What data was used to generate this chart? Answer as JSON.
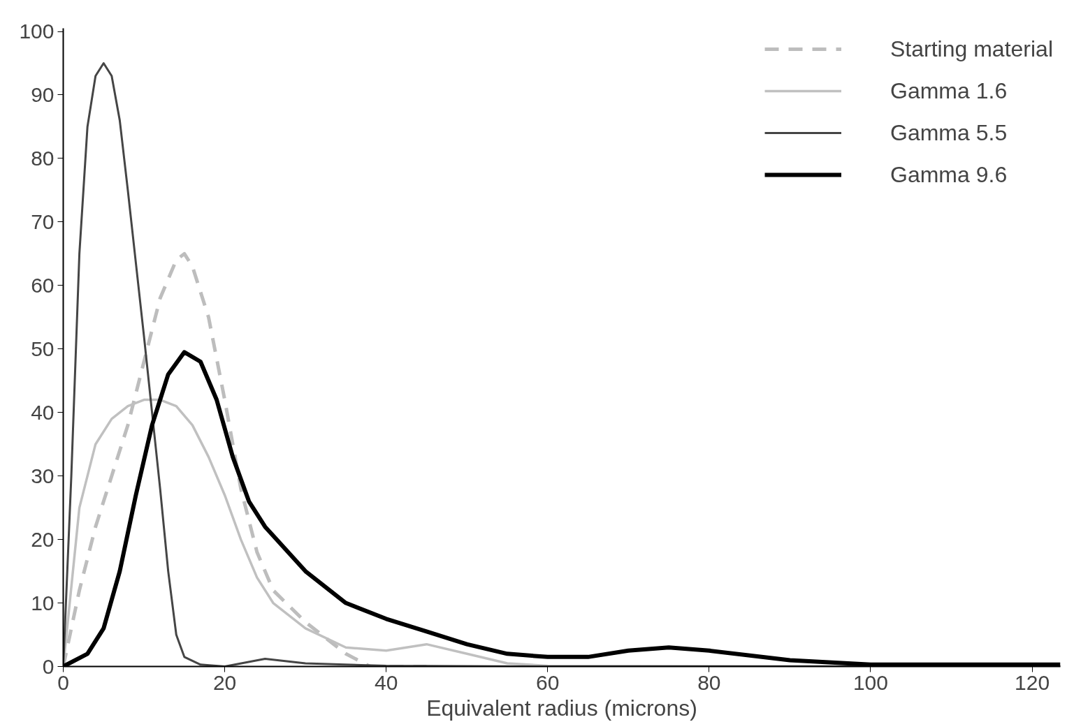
{
  "chart_data": {
    "type": "line",
    "xlabel": "Equivalent radius (microns)",
    "xlim": [
      0,
      123.5
    ],
    "ylim": [
      0,
      100.5
    ],
    "xticks": [
      0,
      20,
      40,
      60,
      80,
      100,
      120
    ],
    "yticks": [
      0,
      10,
      20,
      30,
      40,
      50,
      60,
      70,
      80,
      90,
      100
    ],
    "grid": false,
    "legend": "top right",
    "marker": "none",
    "series": [
      {
        "name": "Starting material",
        "color": "#bdbdbd",
        "line_style": "dashed",
        "x": [
          0,
          2,
          4,
          6,
          8,
          10,
          12,
          14,
          15,
          16,
          18,
          20,
          22,
          24,
          26,
          30,
          35,
          38,
          45
        ],
        "values": [
          0,
          12,
          22,
          30,
          38,
          48,
          58,
          64,
          65,
          63,
          55,
          42,
          28,
          18,
          12,
          7,
          2,
          0,
          0
        ]
      },
      {
        "name": "Gamma 1.6",
        "color": "#c0c0c0",
        "line_style": "solid",
        "x": [
          0,
          2,
          4,
          6,
          8,
          10,
          12,
          14,
          16,
          18,
          20,
          22,
          24,
          26,
          30,
          35,
          40,
          45,
          50,
          55,
          60,
          123.5
        ],
        "values": [
          0,
          25,
          35,
          39,
          41,
          42,
          42,
          41,
          38,
          33,
          27,
          20,
          14,
          10,
          6,
          3,
          2.5,
          3.5,
          2,
          0.5,
          0.1,
          0
        ]
      },
      {
        "name": "Gamma 5.5",
        "color": "#454545",
        "line_style": "solid",
        "x": [
          0,
          1,
          2,
          3,
          4,
          5,
          6,
          7,
          8,
          10,
          12,
          13,
          14,
          15,
          17,
          20,
          25,
          30,
          40,
          60,
          123.5
        ],
        "values": [
          0,
          30,
          65,
          85,
          93,
          95,
          93,
          86,
          75,
          52,
          28,
          15,
          5,
          1.5,
          0.3,
          0,
          1.2,
          0.5,
          0.1,
          0,
          0
        ]
      },
      {
        "name": "Gamma 9.6",
        "color": "#000000",
        "line_style": "solid",
        "x": [
          0,
          3,
          5,
          7,
          9,
          11,
          13,
          15,
          17,
          19,
          21,
          23,
          25,
          30,
          35,
          40,
          45,
          50,
          55,
          60,
          65,
          70,
          75,
          80,
          90,
          100,
          123.5
        ],
        "values": [
          0,
          2,
          6,
          15,
          27,
          38,
          46,
          49.5,
          48,
          42,
          33,
          26,
          22,
          15,
          10,
          7.5,
          5.5,
          3.5,
          2,
          1.5,
          1.5,
          2.5,
          3,
          2.5,
          1,
          0.3,
          0.3
        ]
      }
    ]
  }
}
